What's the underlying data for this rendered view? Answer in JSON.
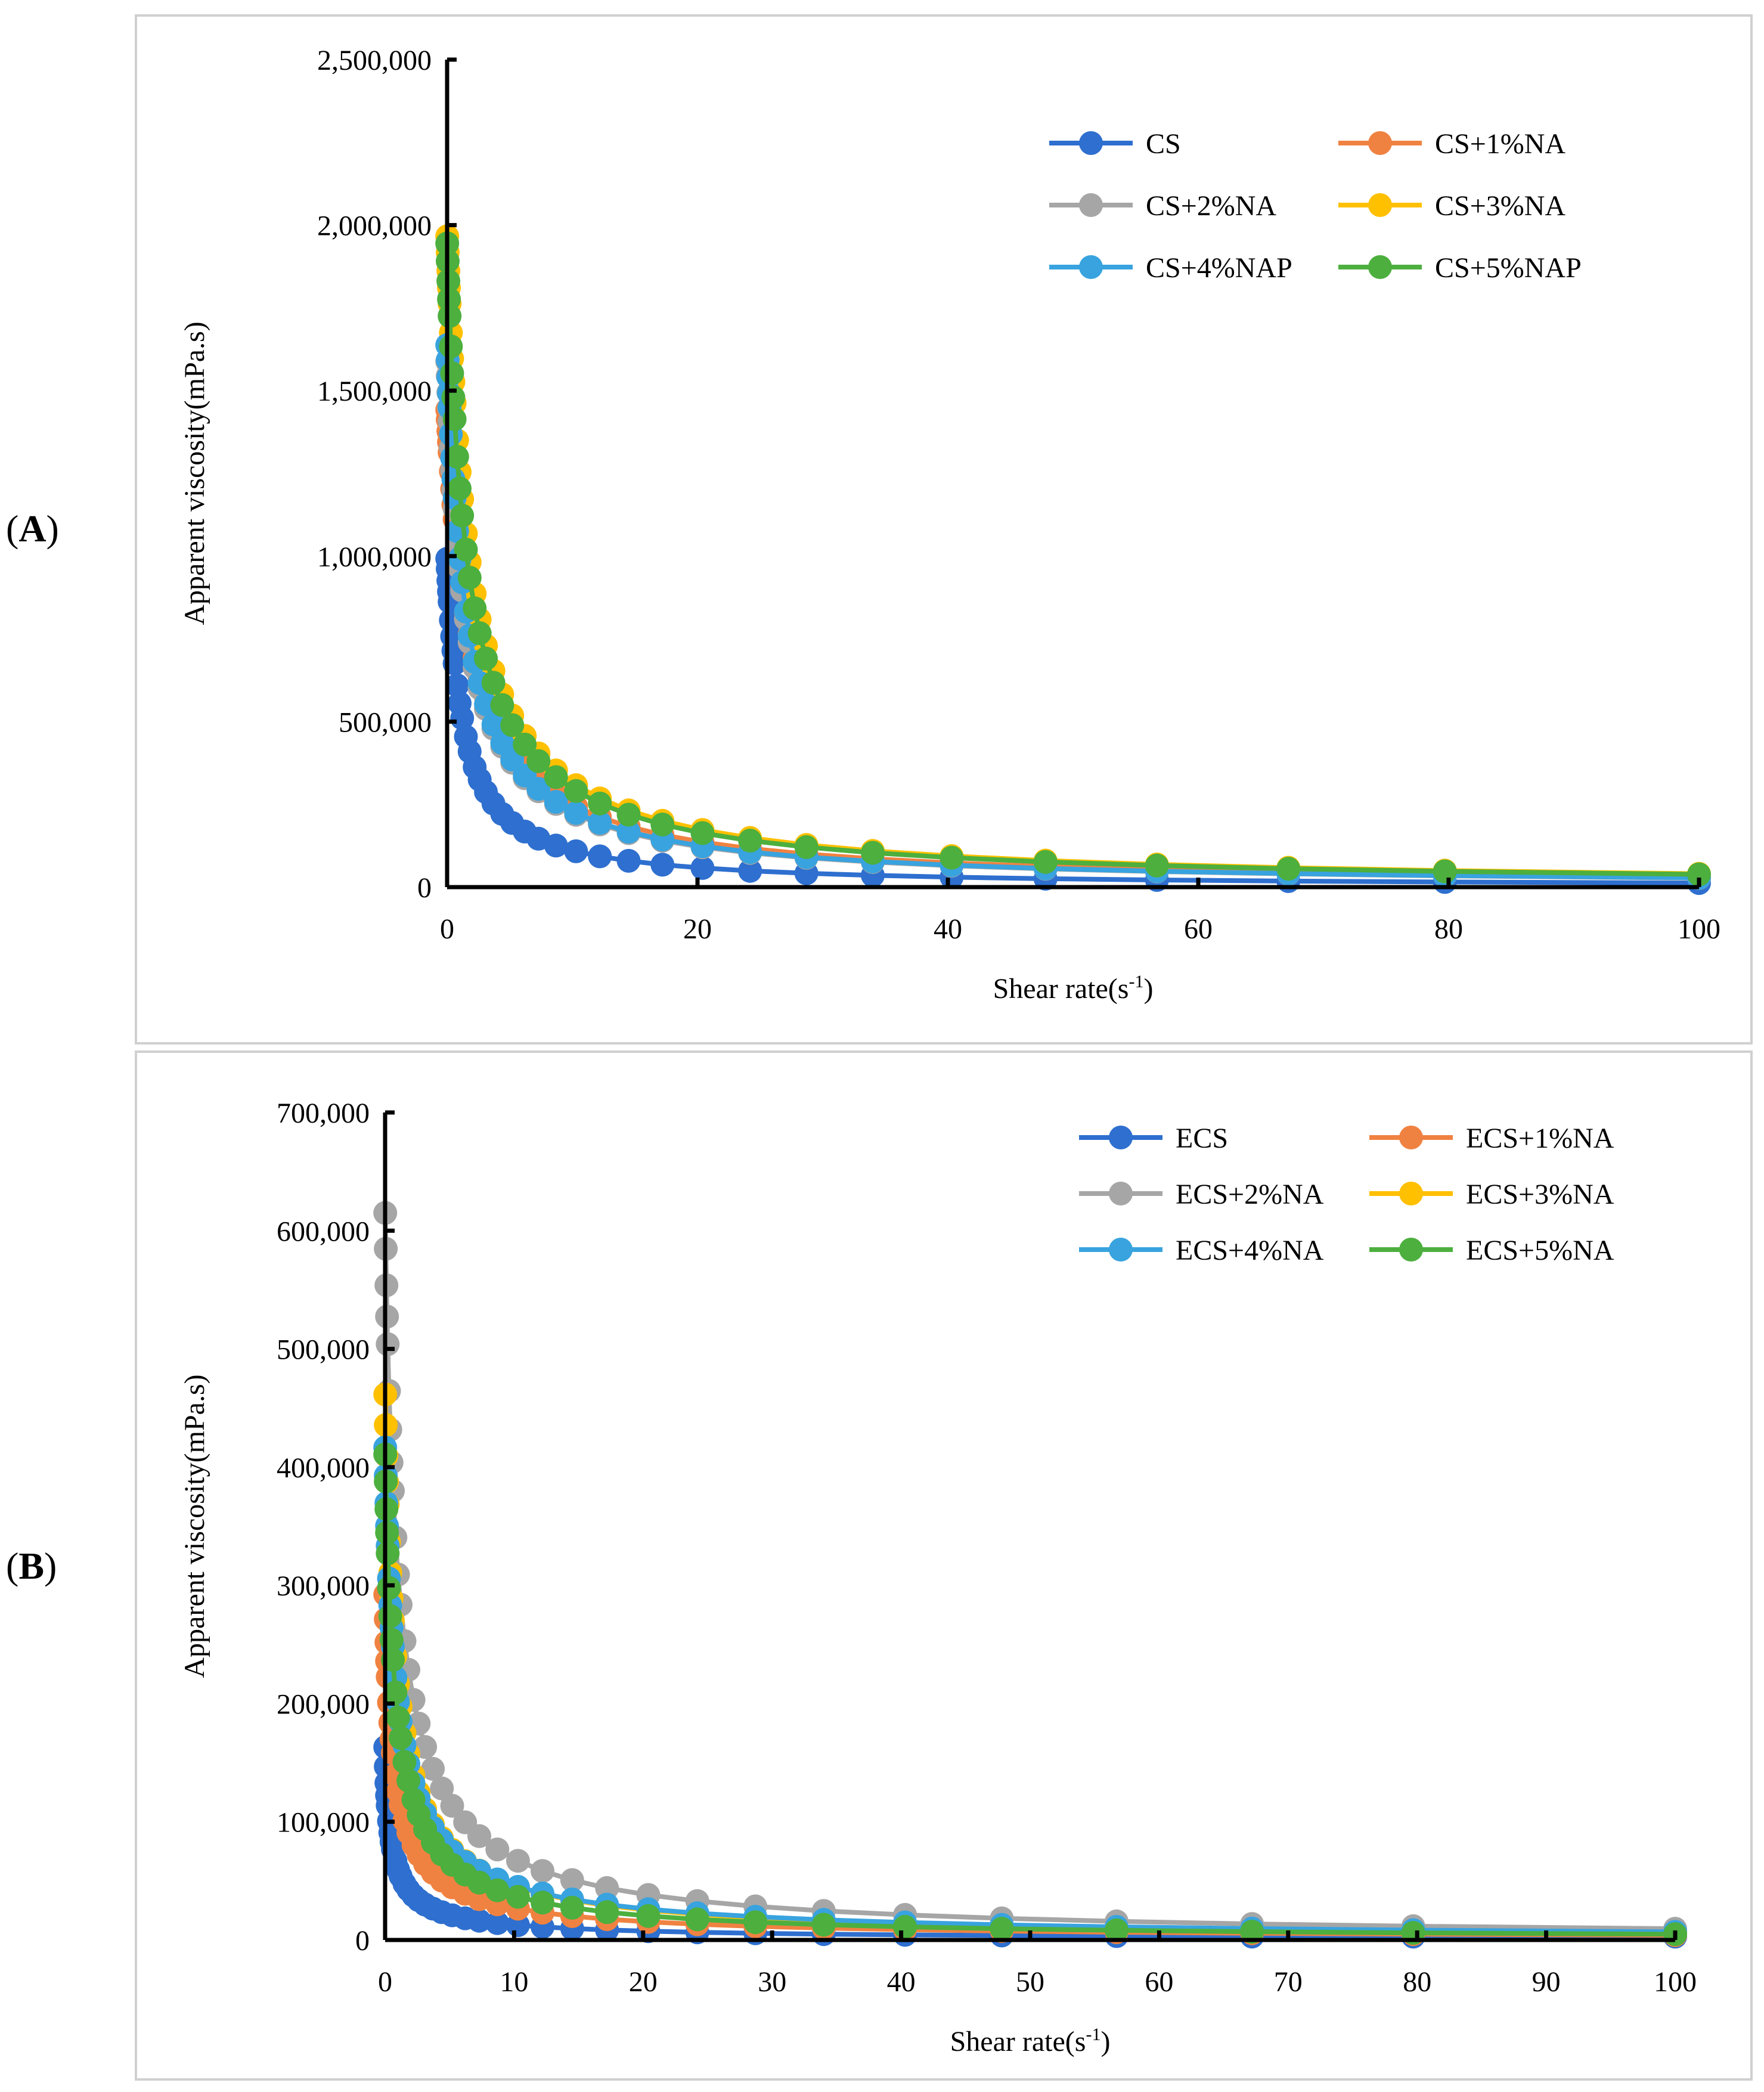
{
  "panel_labels": {
    "a": {
      "open": "(",
      "letter": "A",
      "close": ")"
    },
    "b": {
      "open": "(",
      "letter": "B",
      "close": ")"
    }
  },
  "chart_data": [
    {
      "type": "scatter",
      "id": "A",
      "xlabel": "Shear rate(s",
      "xlabel_sup": "-1",
      "xlabel_end": ")",
      "ylabel": "Apparent viscosity(mPa.s)",
      "xlim": [
        0,
        100
      ],
      "ylim": [
        0,
        2500000
      ],
      "xticks": [
        0,
        20,
        40,
        60,
        80,
        100
      ],
      "xtick_labels": [
        "0",
        "20",
        "40",
        "60",
        "80",
        "100"
      ],
      "yticks": [
        0,
        500000,
        1000000,
        1500000,
        2000000,
        2500000
      ],
      "ytick_labels": [
        "0",
        "500,000",
        "1,000,000",
        "1,500,000",
        "2,000,000",
        "2,500,000"
      ],
      "legend_position": "top-right",
      "x": [
        0.01,
        0.05,
        0.1,
        0.15,
        0.2,
        0.3,
        0.4,
        0.5,
        0.6,
        0.8,
        1.0,
        1.2,
        1.5,
        1.8,
        2.2,
        2.6,
        3.1,
        3.7,
        4.4,
        5.2,
        6.2,
        7.3,
        8.7,
        10.3,
        12.2,
        14.5,
        17.2,
        20.4,
        24.2,
        28.7,
        34.0,
        40.3,
        47.8,
        56.7,
        67.2,
        79.7,
        100
      ],
      "series": [
        {
          "name": "CS",
          "color": "#2e6fcf",
          "y0": 1000000,
          "k": 200000,
          "n": 1.0
        },
        {
          "name": "CS+1%NA",
          "color": "#f08241",
          "y0": 1450000,
          "k": 180000,
          "n": 0.98
        },
        {
          "name": "CS+2%NA",
          "color": "#a6a6a6",
          "y0": 1600000,
          "k": 260000,
          "n": 0.97
        },
        {
          "name": "CS+3%NA",
          "color": "#ffc000",
          "y0": 1980000,
          "k": 280000,
          "n": 0.96
        },
        {
          "name": "CS+4%NAP",
          "color": "#38a3df",
          "y0": 1650000,
          "k": 270000,
          "n": 0.97
        },
        {
          "name": "CS+5%NAP",
          "color": "#4caf3e",
          "y0": 1960000,
          "k": 300000,
          "n": 0.95
        }
      ]
    },
    {
      "type": "scatter",
      "id": "B",
      "xlabel": "Shear rate(s",
      "xlabel_sup": "-1",
      "xlabel_end": ")",
      "ylabel": "Apparent viscosity(mPa.s)",
      "xlim": [
        0,
        100
      ],
      "ylim": [
        0,
        700000
      ],
      "xticks": [
        0,
        10,
        20,
        30,
        40,
        50,
        60,
        70,
        80,
        90,
        100
      ],
      "xtick_labels": [
        "0",
        "10",
        "20",
        "30",
        "40",
        "50",
        "60",
        "70",
        "80",
        "90",
        "100"
      ],
      "yticks": [
        0,
        100000,
        200000,
        300000,
        400000,
        500000,
        600000,
        700000
      ],
      "ytick_labels": [
        "0",
        "100,000",
        "200,000",
        "300,000",
        "400,000",
        "500,000",
        "600,000",
        "700,000"
      ],
      "legend_position": "top-right",
      "x": [
        0.01,
        0.05,
        0.1,
        0.15,
        0.2,
        0.3,
        0.4,
        0.5,
        0.6,
        0.8,
        1.0,
        1.2,
        1.5,
        1.8,
        2.2,
        2.6,
        3.1,
        3.7,
        4.4,
        5.2,
        6.2,
        7.3,
        8.7,
        10.3,
        12.2,
        14.5,
        17.2,
        20.4,
        24.2,
        28.7,
        34.0,
        40.3,
        47.8,
        56.7,
        67.2,
        79.7,
        100
      ],
      "series": [
        {
          "name": "ECS",
          "color": "#2e6fcf",
          "y0": 170000,
          "k": 90000,
          "n": 0.82
        },
        {
          "name": "ECS+1%NA",
          "color": "#f08241",
          "y0": 300000,
          "k": 110000,
          "n": 0.86
        },
        {
          "name": "ECS+2%NA",
          "color": "#a6a6a6",
          "y0": 625000,
          "k": 160000,
          "n": 0.9
        },
        {
          "name": "ECS+3%NA",
          "color": "#ffc000",
          "y0": 470000,
          "k": 140000,
          "n": 0.9
        },
        {
          "name": "ECS+4%NA",
          "color": "#38a3df",
          "y0": 425000,
          "k": 120000,
          "n": 0.87
        },
        {
          "name": "ECS+5%NA",
          "color": "#4caf3e",
          "y0": 418000,
          "k": 130000,
          "n": 0.92
        }
      ]
    }
  ]
}
